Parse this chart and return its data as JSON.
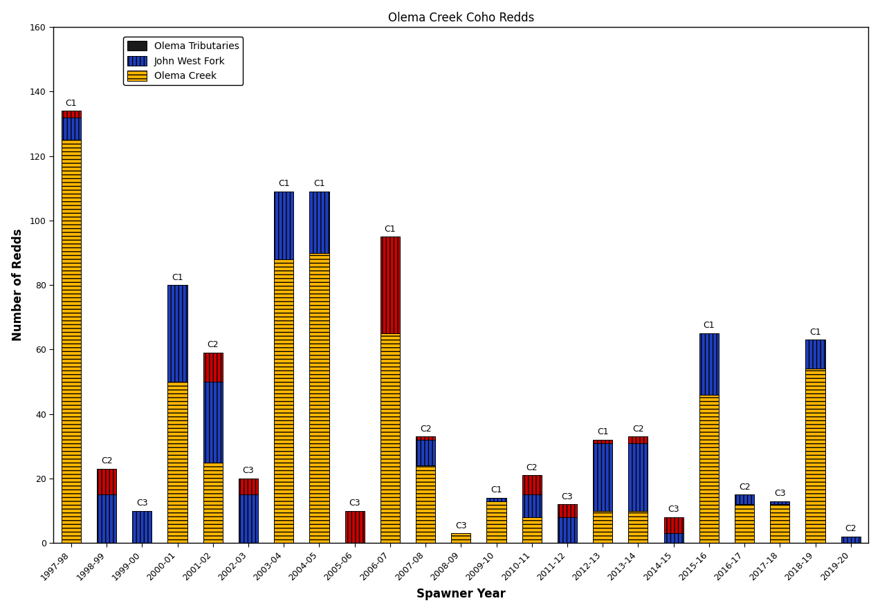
{
  "title": "Olema Creek Coho Redds",
  "xlabel": "Spawner Year",
  "ylabel": "Number of Redds",
  "ylim": [
    0,
    160
  ],
  "yticks": [
    0,
    20,
    40,
    60,
    80,
    100,
    120,
    140,
    160
  ],
  "categories": [
    "1997-98",
    "1998-99",
    "1999-00",
    "2000-01",
    "2001-02",
    "2002-03",
    "2003-04",
    "2004-05",
    "2005-06",
    "2006-07",
    "2007-08",
    "2008-09",
    "2009-10",
    "2010-11",
    "2011-12",
    "2012-13",
    "2013-14",
    "2014-15",
    "2015-16",
    "2016-17",
    "2017-18",
    "2018-19",
    "2019-20"
  ],
  "olema_creek": [
    125,
    0,
    0,
    50,
    25,
    0,
    88,
    90,
    0,
    65,
    24,
    3,
    13,
    8,
    0,
    10,
    10,
    0,
    46,
    12,
    12,
    54,
    0
  ],
  "john_west_fork": [
    7,
    15,
    10,
    30,
    25,
    15,
    21,
    19,
    0,
    0,
    8,
    0,
    1,
    7,
    8,
    21,
    21,
    3,
    19,
    3,
    1,
    9,
    2
  ],
  "olema_tributaries": [
    2,
    8,
    0,
    0,
    9,
    5,
    0,
    0,
    10,
    30,
    1,
    0,
    0,
    6,
    4,
    1,
    2,
    5,
    0,
    0,
    0,
    0,
    0
  ],
  "cohort_labels": [
    "C1",
    "C2",
    "C3",
    "C1",
    "C2",
    "C3",
    "C1",
    "C1",
    "C3",
    "C1",
    "C2",
    "C3",
    "C1",
    "C2",
    "C3",
    "C1",
    "C2",
    "C3",
    "C1",
    "C2",
    "C3",
    "C1",
    "C2"
  ],
  "olema_creek_color": "#FFB700",
  "john_west_fork_color": "#1F3FBF",
  "olema_tributaries_color": "#CC0000",
  "bg_color": "#FFFFFF"
}
